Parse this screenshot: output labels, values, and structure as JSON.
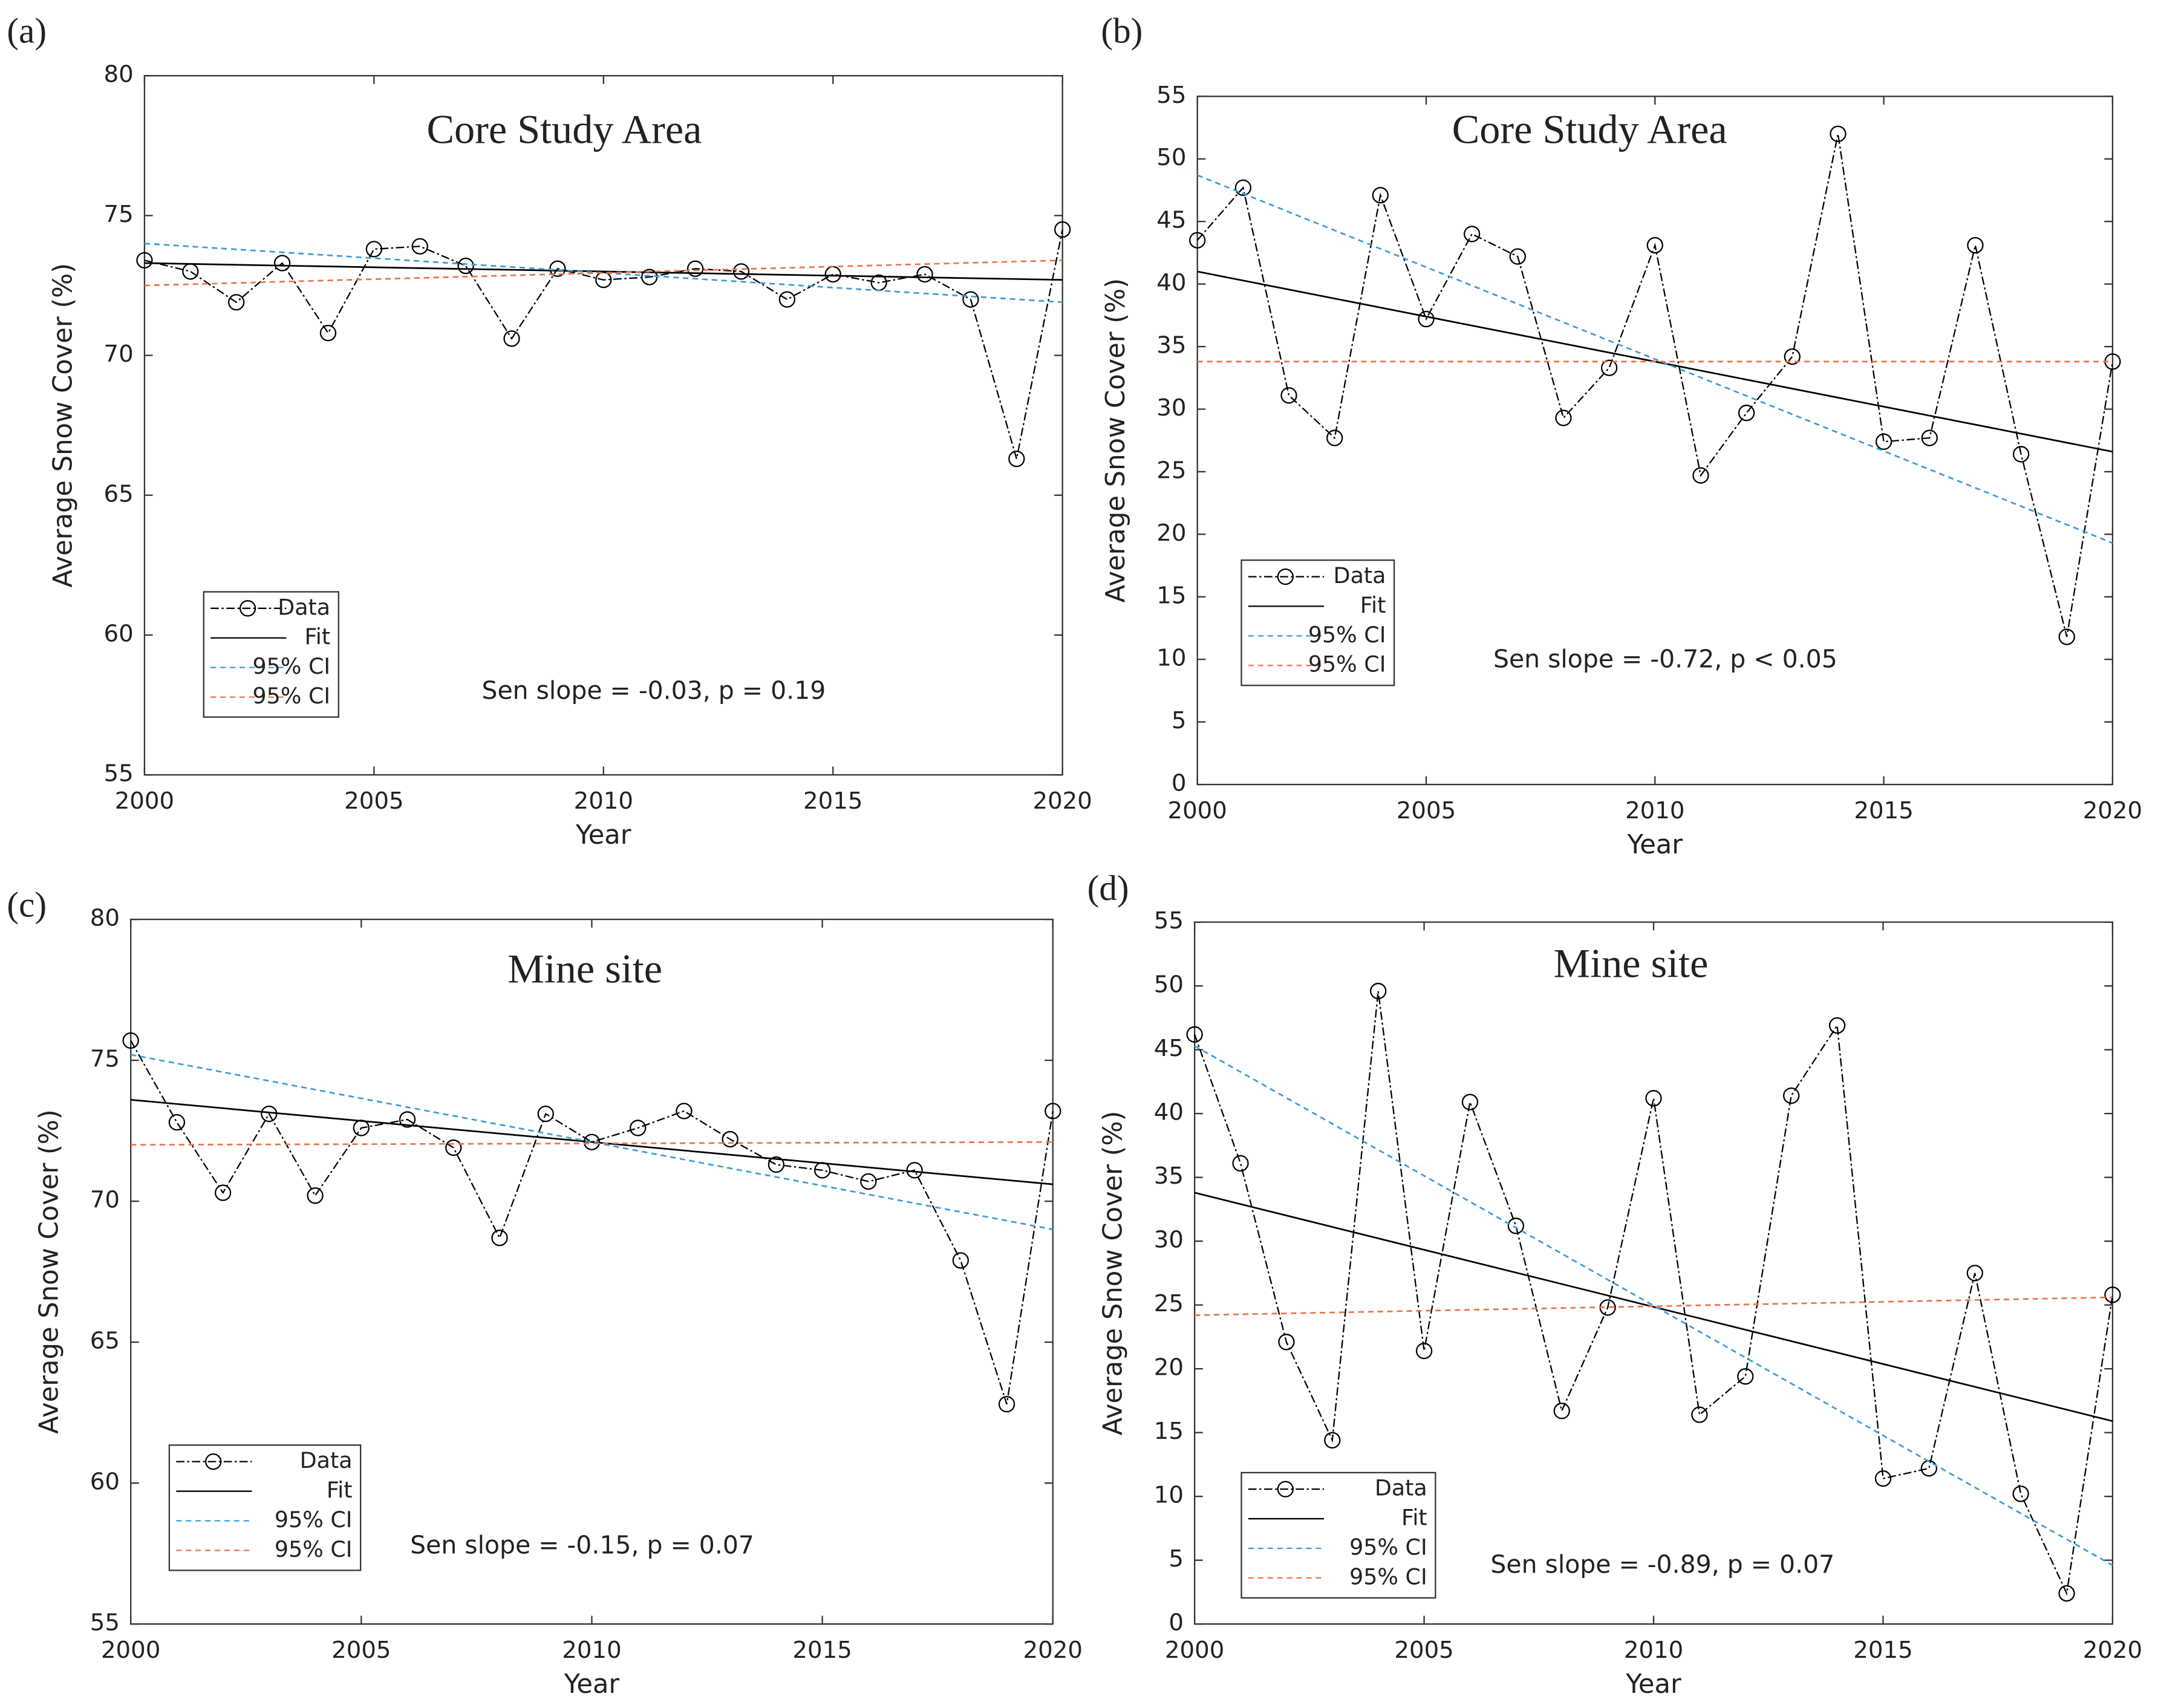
{
  "chart_data": [
    {
      "type": "line",
      "label": "(a)",
      "title": "Core Study Area",
      "xlabel": "Year",
      "ylabel": "Average Snow Cover (%)",
      "annotation": "Sen slope = -0.03, p = 0.19",
      "x": [
        2000,
        2001,
        2002,
        2003,
        2004,
        2005,
        2006,
        2007,
        2008,
        2009,
        2010,
        2011,
        2012,
        2013,
        2014,
        2015,
        2016,
        2017,
        2018,
        2019,
        2020
      ],
      "xlim": [
        2000,
        2020
      ],
      "xticks": [
        2000,
        2005,
        2010,
        2015,
        2020
      ],
      "ylim": [
        55,
        80
      ],
      "yticks": [
        55,
        60,
        65,
        70,
        75,
        80
      ],
      "legend": "lower left",
      "series": [
        {
          "name": "Data",
          "color": "#000000",
          "style": "dash-dot",
          "marker": "circle",
          "values": [
            73.4,
            73.0,
            71.9,
            73.3,
            70.8,
            73.8,
            73.9,
            73.2,
            70.6,
            73.1,
            72.7,
            72.8,
            73.1,
            73.0,
            72.0,
            72.9,
            72.6,
            72.9,
            72.0,
            66.3,
            74.5
          ]
        },
        {
          "name": "Fit",
          "color": "#000000",
          "style": "solid",
          "x": [
            2000,
            2020
          ],
          "values": [
            73.3,
            72.7
          ]
        },
        {
          "name": "95% CI",
          "color": "#3d9bd6",
          "style": "dashed",
          "x": [
            2000,
            2020
          ],
          "values": [
            74.0,
            71.9
          ]
        },
        {
          "name": "95% CI",
          "color": "#e8744a",
          "style": "dashed",
          "x": [
            2000,
            2020
          ],
          "values": [
            72.5,
            73.4
          ]
        }
      ]
    },
    {
      "type": "line",
      "label": "(b)",
      "title": "Core Study Area",
      "xlabel": "Year",
      "ylabel": "Average Snow Cover (%)",
      "annotation": "Sen slope = -0.72, p < 0.05",
      "x": [
        2000,
        2001,
        2002,
        2003,
        2004,
        2005,
        2006,
        2007,
        2008,
        2009,
        2010,
        2011,
        2012,
        2013,
        2014,
        2015,
        2016,
        2017,
        2018,
        2019,
        2020
      ],
      "xlim": [
        2000,
        2020
      ],
      "xticks": [
        2000,
        2005,
        2010,
        2015,
        2020
      ],
      "ylim": [
        0,
        55
      ],
      "yticks": [
        0,
        5,
        10,
        15,
        20,
        25,
        30,
        35,
        40,
        45,
        50,
        55
      ],
      "legend": "lower left",
      "series": [
        {
          "name": "Data",
          "color": "#000000",
          "style": "dash-dot",
          "marker": "circle",
          "values": [
            43.5,
            47.7,
            31.1,
            27.7,
            47.1,
            37.2,
            44.0,
            42.2,
            29.3,
            33.3,
            43.1,
            24.7,
            29.7,
            34.2,
            52.0,
            27.4,
            27.7,
            43.1,
            26.4,
            11.8,
            33.8
          ]
        },
        {
          "name": "Fit",
          "color": "#000000",
          "style": "solid",
          "x": [
            2000,
            2020
          ],
          "values": [
            41.0,
            26.6
          ]
        },
        {
          "name": "95% CI",
          "color": "#3d9bd6",
          "style": "dashed",
          "x": [
            2000,
            2020
          ],
          "values": [
            48.7,
            19.3
          ]
        },
        {
          "name": "95% CI",
          "color": "#e8744a",
          "style": "dashed",
          "x": [
            2000,
            2020
          ],
          "values": [
            33.8,
            33.8
          ]
        }
      ]
    },
    {
      "type": "line",
      "label": "(c)",
      "title": "Mine site",
      "xlabel": "Year",
      "ylabel": "Average Snow Cover (%)",
      "annotation": "Sen slope = -0.15, p = 0.07",
      "x": [
        2000,
        2001,
        2002,
        2003,
        2004,
        2005,
        2006,
        2007,
        2008,
        2009,
        2010,
        2011,
        2012,
        2013,
        2014,
        2015,
        2016,
        2017,
        2018,
        2019,
        2020
      ],
      "xlim": [
        2000,
        2020
      ],
      "xticks": [
        2000,
        2005,
        2010,
        2015,
        2020
      ],
      "ylim": [
        55,
        80
      ],
      "yticks": [
        55,
        60,
        65,
        70,
        75,
        80
      ],
      "legend": "lower left",
      "series": [
        {
          "name": "Data",
          "color": "#000000",
          "style": "dash-dot",
          "marker": "circle",
          "values": [
            75.7,
            72.8,
            70.3,
            73.1,
            70.2,
            72.6,
            72.9,
            71.9,
            68.7,
            73.1,
            72.1,
            72.6,
            73.2,
            72.2,
            71.3,
            71.1,
            70.7,
            71.1,
            67.9,
            62.8,
            73.2
          ]
        },
        {
          "name": "Fit",
          "color": "#000000",
          "style": "solid",
          "x": [
            2000,
            2020
          ],
          "values": [
            73.6,
            70.6
          ]
        },
        {
          "name": "95% CI",
          "color": "#3d9bd6",
          "style": "dashed",
          "x": [
            2000,
            2020
          ],
          "values": [
            75.2,
            69.0
          ]
        },
        {
          "name": "95% CI",
          "color": "#e8744a",
          "style": "dashed",
          "x": [
            2000,
            2020
          ],
          "values": [
            72.0,
            72.1
          ]
        }
      ]
    },
    {
      "type": "line",
      "label": "(d)",
      "title": "Mine site",
      "xlabel": "Year",
      "ylabel": "Average Snow Cover (%)",
      "annotation": "Sen slope = -0.89, p = 0.07",
      "x": [
        2000,
        2001,
        2002,
        2003,
        2004,
        2005,
        2006,
        2007,
        2008,
        2009,
        2010,
        2011,
        2012,
        2013,
        2014,
        2015,
        2016,
        2017,
        2018,
        2019,
        2020
      ],
      "xlim": [
        2000,
        2020
      ],
      "xticks": [
        2000,
        2005,
        2010,
        2015,
        2020
      ],
      "ylim": [
        0,
        55
      ],
      "yticks": [
        0,
        5,
        10,
        15,
        20,
        25,
        30,
        35,
        40,
        45,
        50,
        55
      ],
      "legend": "lower left",
      "series": [
        {
          "name": "Data",
          "color": "#000000",
          "style": "dash-dot",
          "marker": "circle",
          "values": [
            46.2,
            36.1,
            22.1,
            14.4,
            49.6,
            21.4,
            40.9,
            31.2,
            16.7,
            24.8,
            41.2,
            16.4,
            19.4,
            41.4,
            46.9,
            11.4,
            12.2,
            27.5,
            10.2,
            2.4,
            25.8
          ]
        },
        {
          "name": "Fit",
          "color": "#000000",
          "style": "solid",
          "x": [
            2000,
            2020
          ],
          "values": [
            33.8,
            15.9
          ]
        },
        {
          "name": "95% CI",
          "color": "#3d9bd6",
          "style": "dashed",
          "x": [
            2000,
            2020
          ],
          "values": [
            45.3,
            4.6
          ]
        },
        {
          "name": "95% CI",
          "color": "#e8744a",
          "style": "dashed",
          "x": [
            2000,
            2020
          ],
          "values": [
            24.2,
            25.6
          ]
        }
      ]
    }
  ]
}
